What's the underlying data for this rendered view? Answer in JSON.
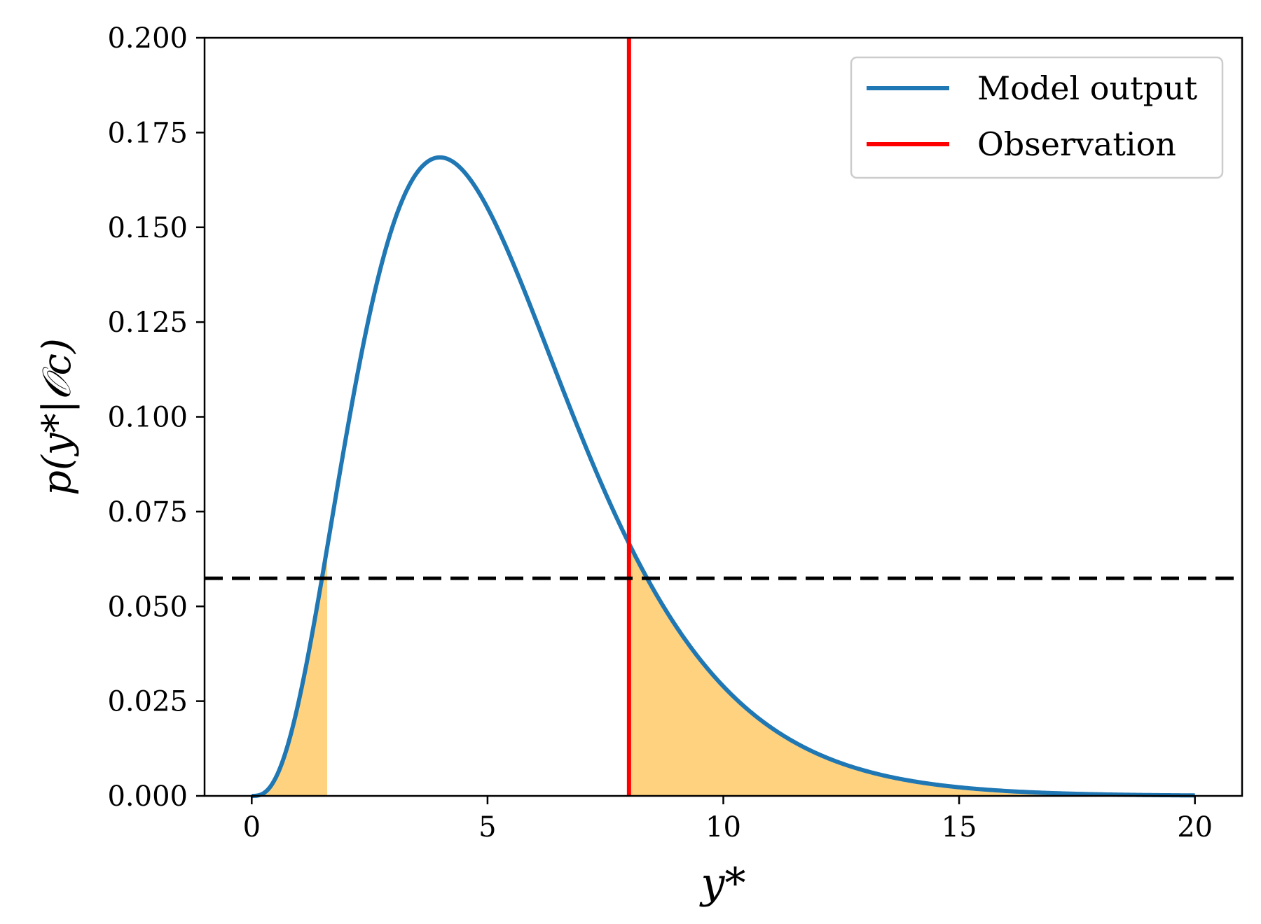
{
  "chart_data": {
    "type": "line",
    "title": "",
    "xlabel": "y*",
    "ylabel": "p(y*|𝒪c)",
    "xlim": [
      -1,
      21
    ],
    "ylim": [
      0,
      0.2
    ],
    "xticks": [
      0,
      5,
      10,
      15,
      20
    ],
    "xtick_labels": [
      "0",
      "5",
      "10",
      "15",
      "20"
    ],
    "yticks": [
      0,
      0.025,
      0.05,
      0.075,
      0.1,
      0.125,
      0.15,
      0.175,
      0.2
    ],
    "ytick_labels": [
      "0.000",
      "0.025",
      "0.050",
      "0.075",
      "0.100",
      "0.125",
      "0.150",
      "0.175",
      "0.200"
    ],
    "grid": false,
    "legend_position": "top-right",
    "series": [
      {
        "name": "Model output",
        "color": "#1f77b4",
        "distribution": "gamma",
        "shape": 4,
        "scale": 1.33,
        "x_range": [
          0,
          20
        ]
      }
    ],
    "observation": {
      "name": "Observation",
      "x": 8.0,
      "color": "#ff0000"
    },
    "threshold": {
      "y": 0.0574,
      "color": "#000000",
      "style": "dashed"
    },
    "shaded_regions": [
      {
        "from": 0,
        "to": 1.6,
        "color": "#ffd280"
      },
      {
        "from": 8.0,
        "to": 20,
        "color": "#ffd280"
      }
    ],
    "legend": [
      {
        "label": "Model output",
        "color": "#1f77b4"
      },
      {
        "label": "Observation",
        "color": "#ff0000"
      }
    ]
  }
}
